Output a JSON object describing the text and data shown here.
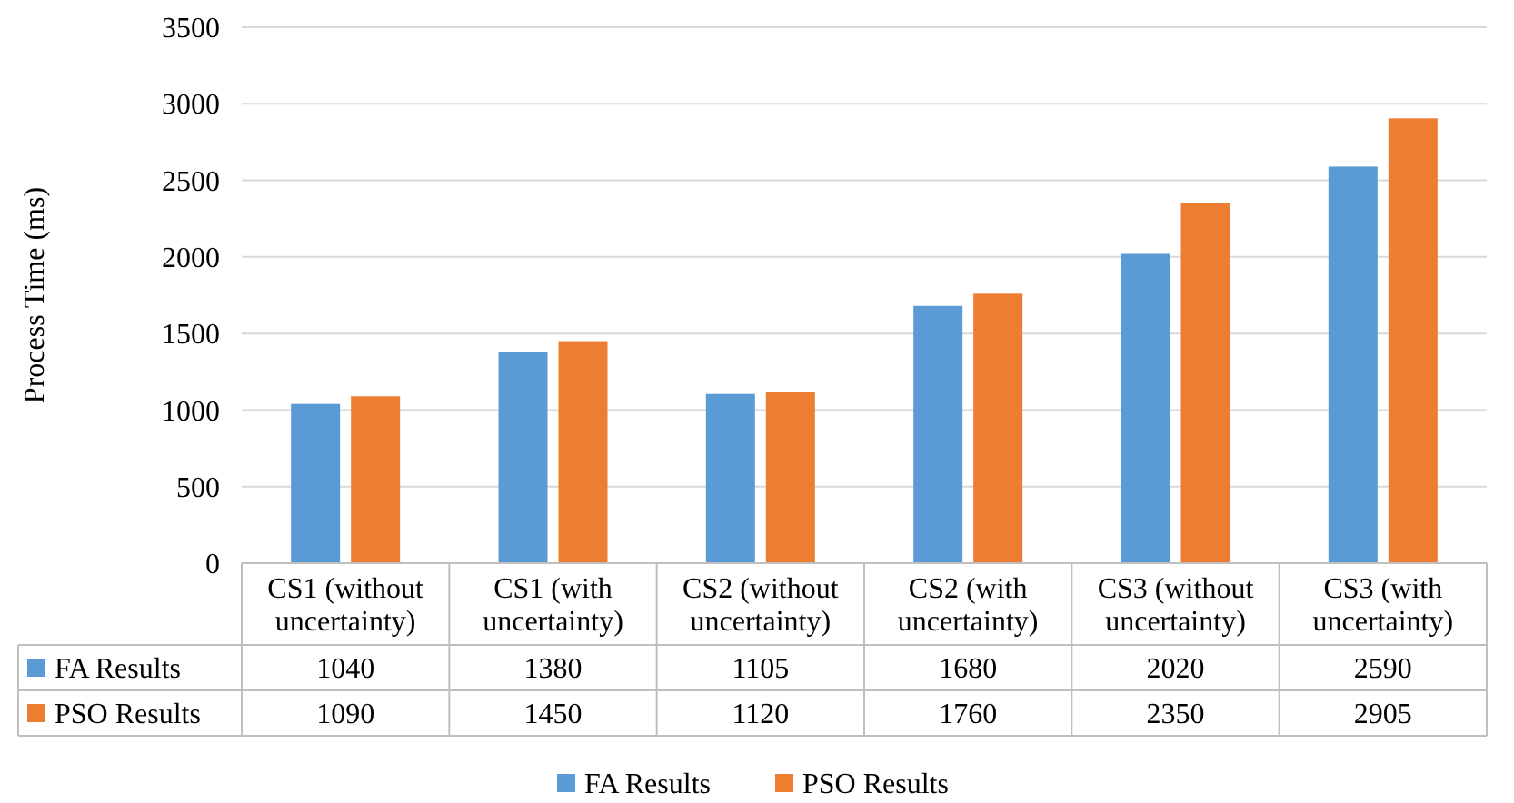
{
  "chart_data": {
    "type": "bar",
    "ylabel": "Process Time (ms)",
    "categories": [
      "CS1 (without uncertainty)",
      "CS1 (with uncertainty)",
      "CS2 (without uncertainty)",
      "CS2 (with uncertainty)",
      "CS3 (without uncertainty)",
      "CS3 (with uncertainty)"
    ],
    "series": [
      {
        "name": "FA Results",
        "color": "#5b9bd5",
        "values": [
          1040,
          1380,
          1105,
          1680,
          2020,
          2590
        ]
      },
      {
        "name": "PSO Results",
        "color": "#ed7d31",
        "values": [
          1090,
          1450,
          1120,
          1760,
          2350,
          2905
        ]
      }
    ],
    "ylim": [
      0,
      3500
    ],
    "yticks": [
      0,
      500,
      1000,
      1500,
      2000,
      2500,
      3000,
      3500
    ],
    "grid": "y",
    "legend": "bottom",
    "data_labels": true
  }
}
